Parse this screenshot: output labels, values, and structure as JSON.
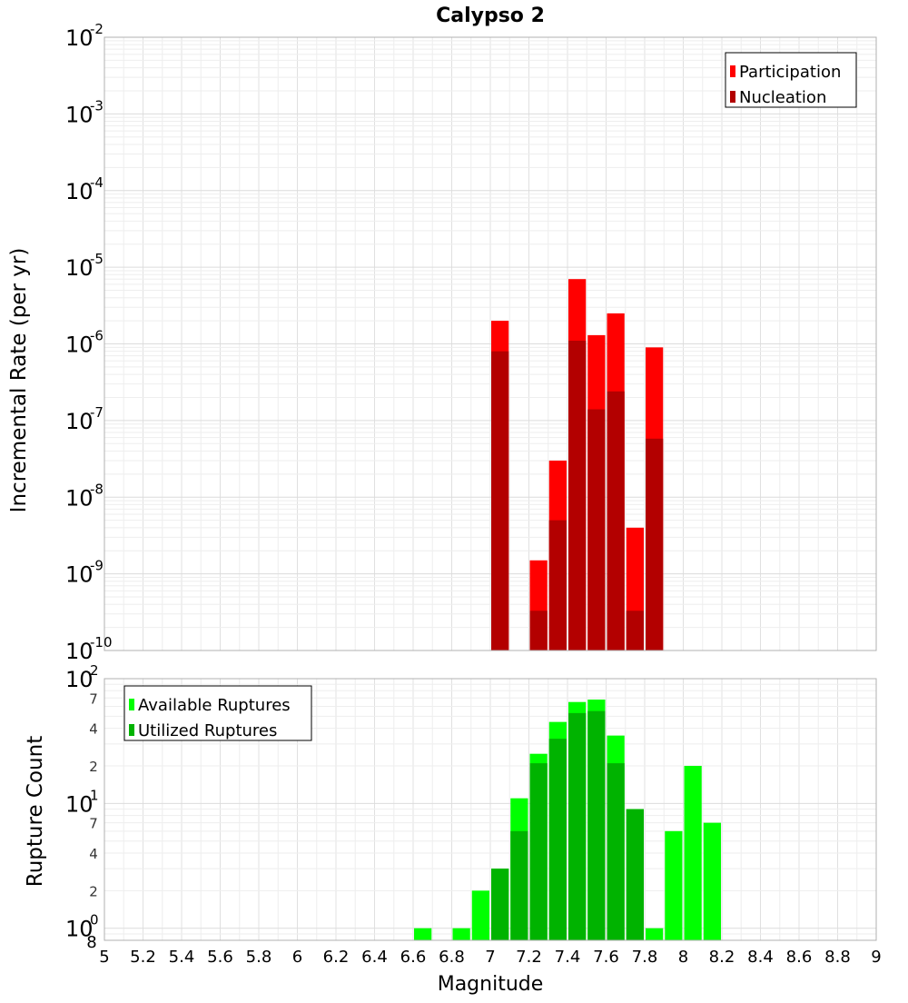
{
  "chart_data": [
    {
      "type": "bar",
      "title": "Calypso 2",
      "ylabel": "Incremental Rate (per yr)",
      "yscale": "log",
      "ylim": [
        1e-10,
        0.01
      ],
      "xlim": [
        5,
        9
      ],
      "y_tick_mantissa": "10",
      "y_ticks": [
        {
          "value": 0.01,
          "exp": "-2"
        },
        {
          "value": 0.001,
          "exp": "-3"
        },
        {
          "value": 0.0001,
          "exp": "-4"
        },
        {
          "value": 1e-05,
          "exp": "-5"
        },
        {
          "value": 1e-06,
          "exp": "-6"
        },
        {
          "value": 1e-07,
          "exp": "-7"
        },
        {
          "value": 1e-08,
          "exp": "-8"
        },
        {
          "value": 1e-09,
          "exp": "-9"
        },
        {
          "value": 1e-10,
          "exp": "-10"
        }
      ],
      "legend_position": "top-right",
      "grid": true,
      "series": [
        {
          "name": "Participation",
          "color": "#ff0000",
          "x": [
            7.05,
            7.25,
            7.35,
            7.45,
            7.55,
            7.65,
            7.75,
            7.85
          ],
          "values": [
            2e-06,
            1.5e-09,
            3e-08,
            7e-06,
            1.3e-06,
            2.5e-06,
            4e-09,
            9e-07
          ]
        },
        {
          "name": "Nucleation",
          "color": "#b30000",
          "x": [
            7.05,
            7.25,
            7.35,
            7.45,
            7.55,
            7.65,
            7.75,
            7.85
          ],
          "values": [
            8e-07,
            3.3e-10,
            5e-09,
            1.1e-06,
            1.4e-07,
            2.4e-07,
            3.3e-10,
            5.8e-08
          ]
        }
      ]
    },
    {
      "type": "bar",
      "ylabel": "Rupture Count",
      "xlabel": "Magnitude",
      "yscale": "log",
      "ylim": [
        0.8,
        100
      ],
      "xlim": [
        5,
        9
      ],
      "x_ticks": [
        "5",
        "5.2",
        "5.4",
        "5.6",
        "5.8",
        "6",
        "6.2",
        "6.4",
        "6.6",
        "6.8",
        "7",
        "7.2",
        "7.4",
        "7.6",
        "7.8",
        "8",
        "8.2",
        "8.4",
        "8.6",
        "8.8",
        "9"
      ],
      "y_major_ticks": [
        {
          "value": 100,
          "mantissa": "10",
          "exp": "2"
        },
        {
          "value": 10,
          "mantissa": "10",
          "exp": "1"
        },
        {
          "value": 1,
          "mantissa": "10",
          "exp": "0"
        }
      ],
      "y_minor_ticks": [
        {
          "value": 70,
          "label": "7"
        },
        {
          "value": 40,
          "label": "4"
        },
        {
          "value": 20,
          "label": "2"
        },
        {
          "value": 7,
          "label": "7"
        },
        {
          "value": 4,
          "label": "4"
        },
        {
          "value": 2,
          "label": "2"
        },
        {
          "value": 0.8,
          "label": "8"
        }
      ],
      "legend_position": "top-left",
      "grid": true,
      "series": [
        {
          "name": "Available Ruptures",
          "color": "#00ff00",
          "x": [
            6.65,
            6.85,
            6.95,
            7.05,
            7.15,
            7.25,
            7.35,
            7.45,
            7.55,
            7.65,
            7.75,
            7.85,
            7.95,
            8.05,
            8.15
          ],
          "values": [
            1,
            1,
            2,
            3,
            11,
            25,
            45,
            65,
            68,
            35,
            9,
            1,
            6,
            20,
            7
          ]
        },
        {
          "name": "Utilized Ruptures",
          "color": "#00b300",
          "x": [
            7.05,
            7.15,
            7.25,
            7.35,
            7.45,
            7.55,
            7.65,
            7.75
          ],
          "values": [
            3,
            6,
            21,
            33,
            53,
            55,
            21,
            9
          ]
        }
      ]
    }
  ]
}
